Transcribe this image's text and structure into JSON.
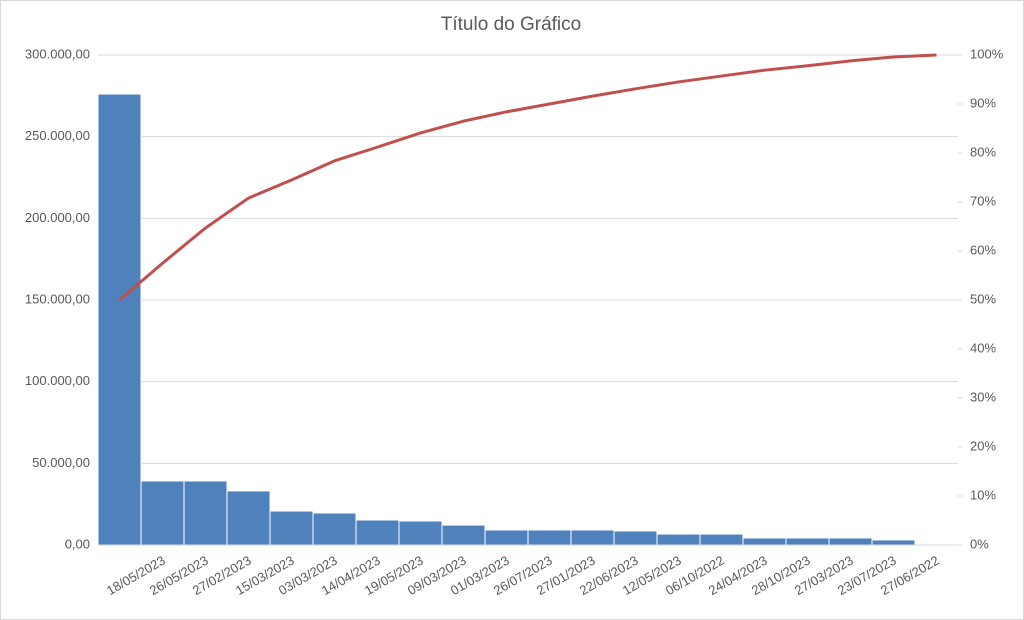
{
  "chart_data": {
    "type": "pareto",
    "title": "Título do Gráfico",
    "categories": [
      null,
      "18/05/2023",
      "26/05/2023",
      "27/02/2023",
      "15/03/2023",
      "03/03/2023",
      "14/04/2023",
      "19/05/2023",
      "09/03/2023",
      "01/03/2023",
      "26/07/2023",
      "27/01/2023",
      "22/06/2023",
      "12/05/2023",
      "06/10/2022",
      "24/04/2023",
      "28/10/2023",
      "27/03/2023",
      "23/07/2023",
      "27/06/2022"
    ],
    "series": [
      {
        "type": "bar",
        "color": "#4f81bd",
        "values": [
          276100,
          39200,
          39200,
          33100,
          20800,
          19600,
          15300,
          14700,
          12200,
          9200,
          9200,
          9200,
          8600,
          6700,
          6700,
          4300,
          4300,
          4300,
          3100,
          600
        ]
      },
      {
        "type": "line",
        "axis": "y2",
        "color": "#c0504d",
        "values": [
          50,
          57.5,
          64.7,
          70.8,
          74.5,
          78.4,
          81.2,
          84.1,
          86.5,
          88.4,
          90,
          91.6,
          93.1,
          94.5,
          95.7,
          96.9,
          97.8,
          98.8,
          99.6,
          100
        ]
      }
    ],
    "ylim": [
      0,
      300000
    ],
    "yticks": [
      {
        "value": 0,
        "label": "0,00"
      },
      {
        "value": 50000,
        "label": "50.000,00"
      },
      {
        "value": 100000,
        "label": "100.000,00"
      },
      {
        "value": 150000,
        "label": "150.000,00"
      },
      {
        "value": 200000,
        "label": "200.000,00"
      },
      {
        "value": 250000,
        "label": "250.000,00"
      },
      {
        "value": 300000,
        "label": "300.000,00"
      }
    ],
    "y2lim": [
      0,
      100
    ],
    "y2ticks": [
      {
        "value": 0,
        "label": "0%"
      },
      {
        "value": 10,
        "label": "10%"
      },
      {
        "value": 20,
        "label": "20%"
      },
      {
        "value": 30,
        "label": "30%"
      },
      {
        "value": 40,
        "label": "40%"
      },
      {
        "value": 50,
        "label": "50%"
      },
      {
        "value": 60,
        "label": "60%"
      },
      {
        "value": 70,
        "label": "70%"
      },
      {
        "value": 80,
        "label": "80%"
      },
      {
        "value": 90,
        "label": "90%"
      },
      {
        "value": 100,
        "label": "100%"
      }
    ],
    "grid": true
  }
}
